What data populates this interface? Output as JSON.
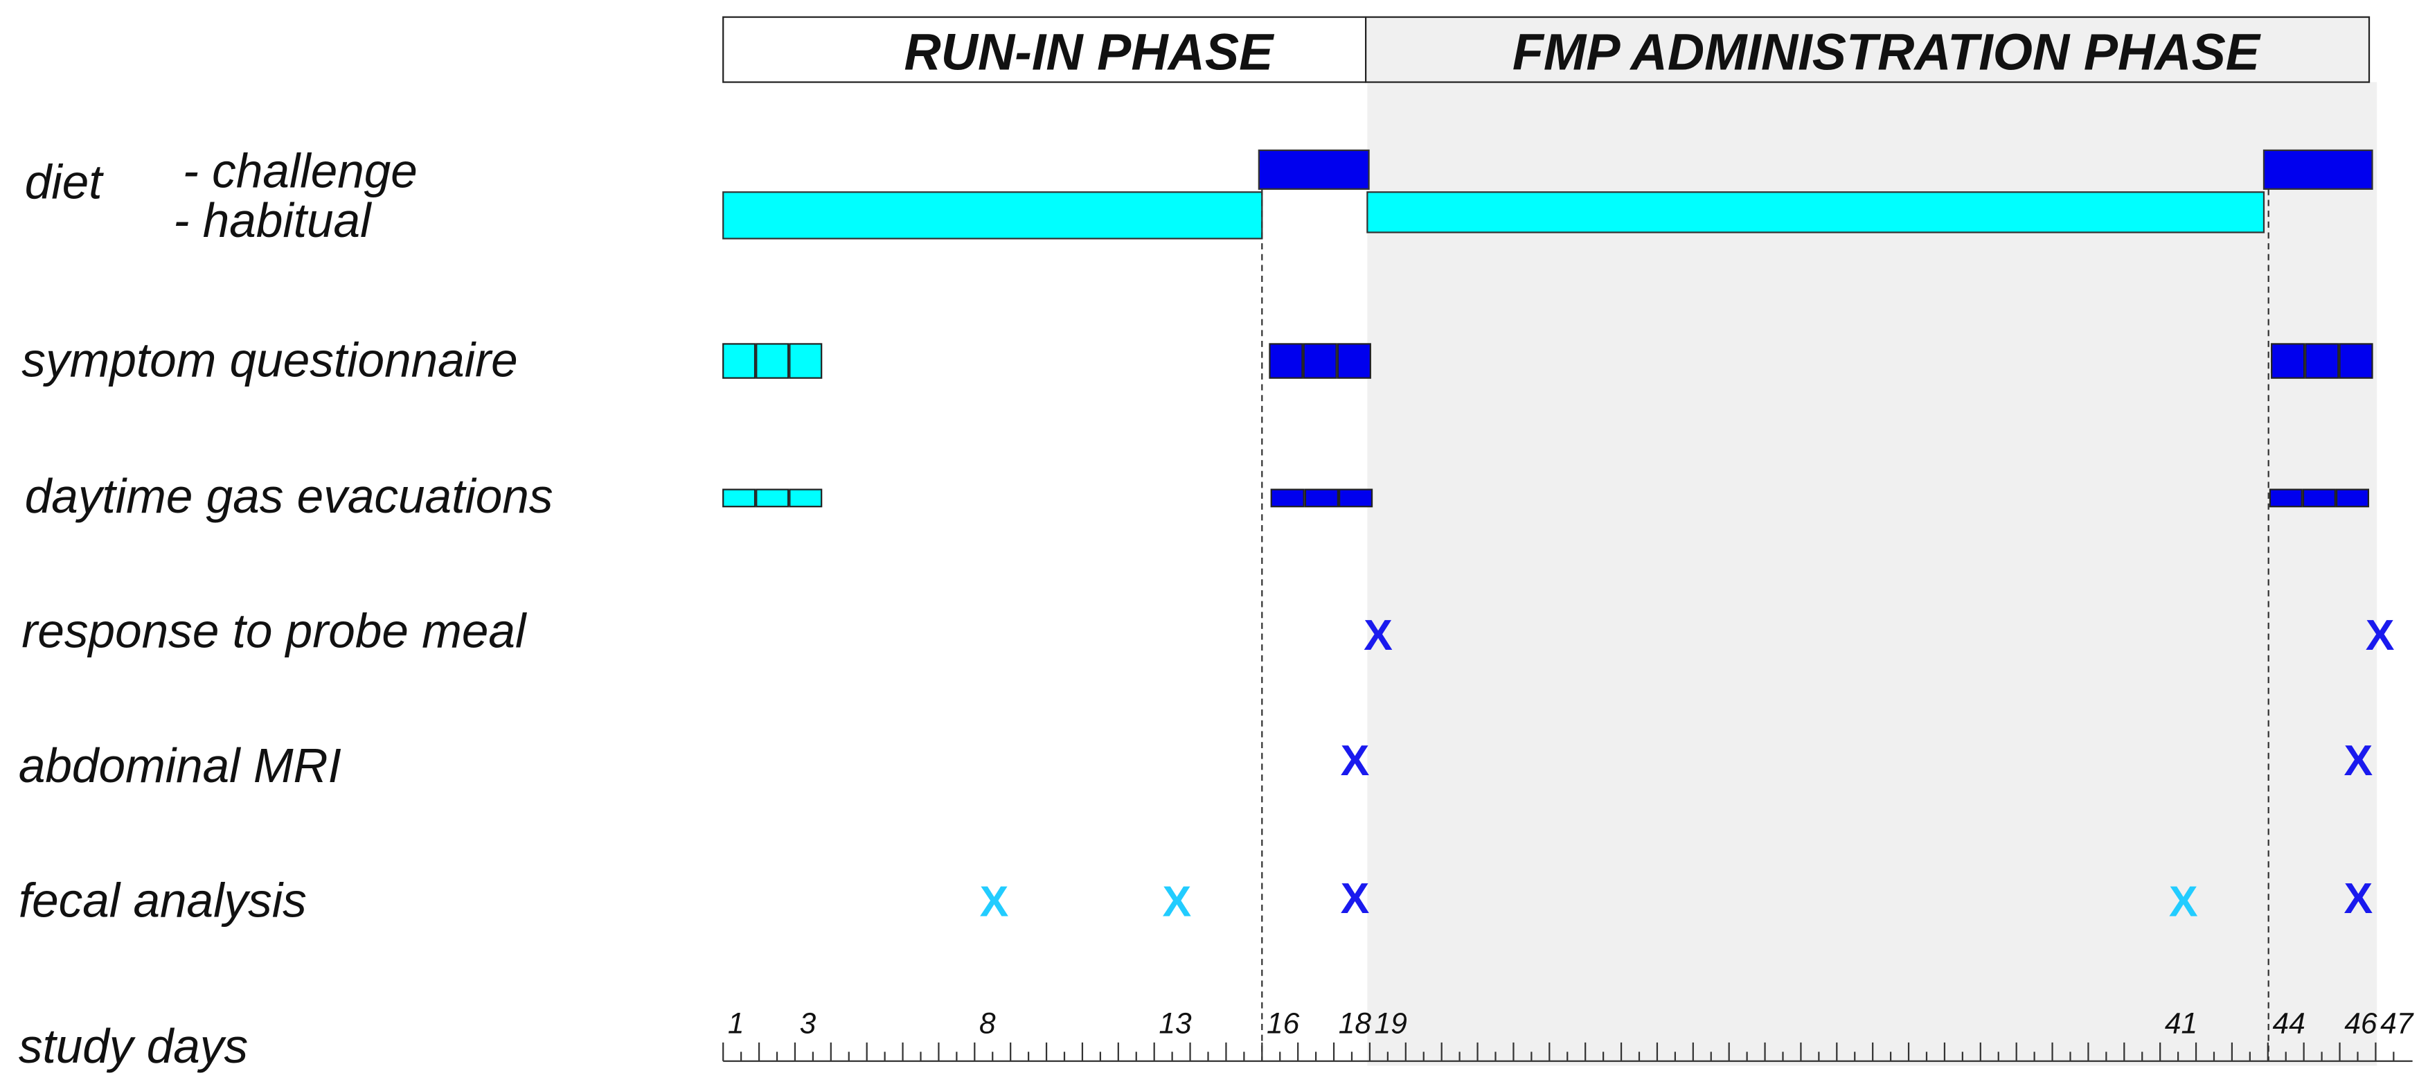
{
  "header": {
    "phases": [
      "RUN-IN PHASE",
      "FMP ADMINISTRATION PHASE"
    ]
  },
  "rows": {
    "diet": "diet",
    "challenge": "- challenge",
    "habitual": "- habitual",
    "symptom": "symptom questionnaire",
    "gas": "daytime gas evacuations",
    "probe": "response to probe meal",
    "mri": "abdominal MRI",
    "fecal": "fecal analysis"
  },
  "marker": "X",
  "study_days": {
    "label": "study days",
    "ticks": [
      1,
      3,
      8,
      13,
      16,
      18,
      19,
      41,
      44,
      46,
      47
    ]
  }
}
